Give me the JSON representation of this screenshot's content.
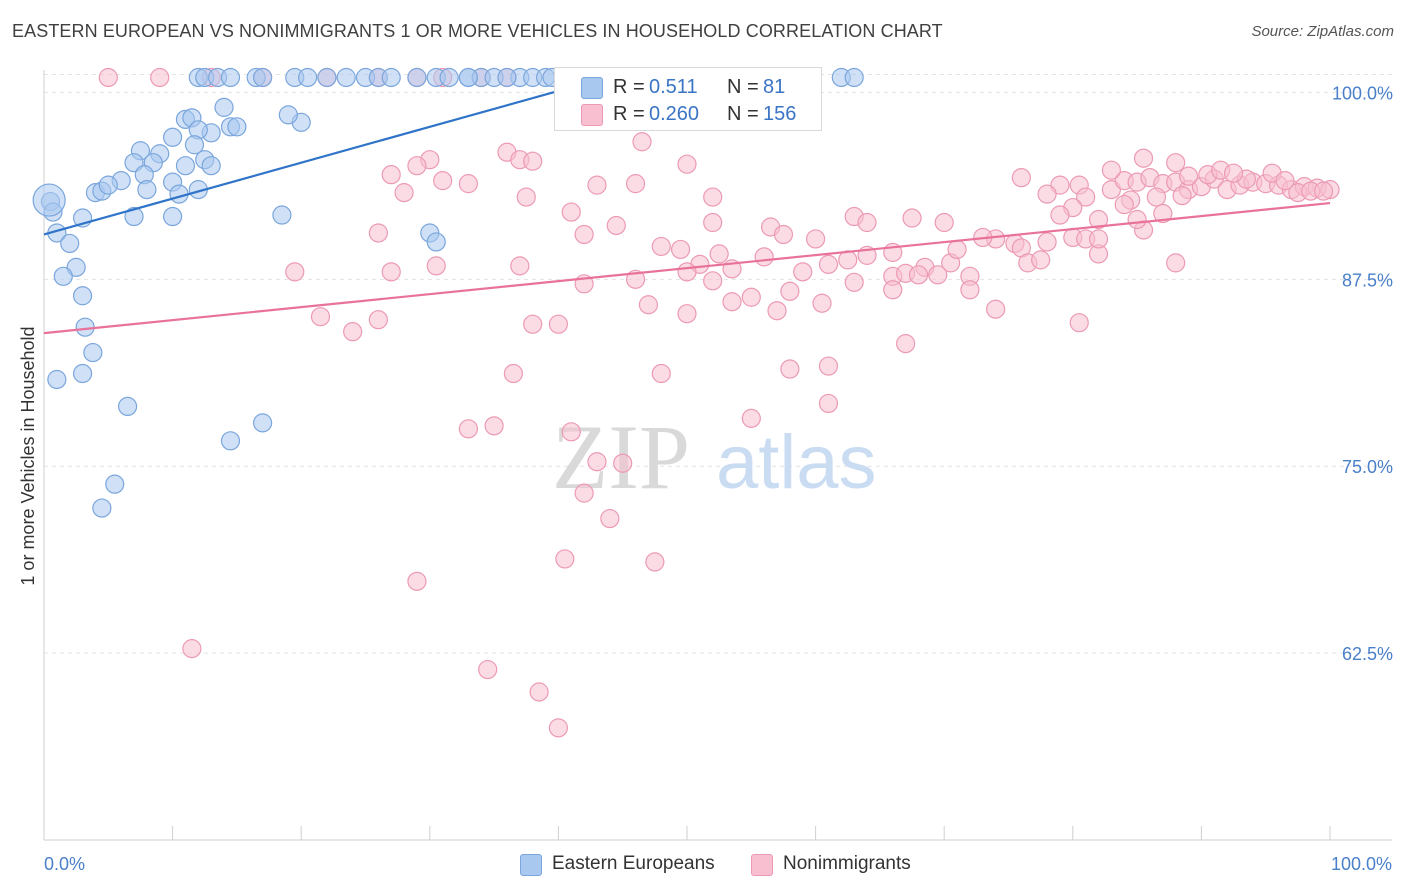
{
  "title": "EASTERN EUROPEAN VS NONIMMIGRANTS 1 OR MORE VEHICLES IN HOUSEHOLD CORRELATION CHART",
  "source": "Source: ZipAtlas.com",
  "watermark": {
    "zip": "ZIP",
    "atlas": "atlas"
  },
  "colors": {
    "blue_fill": "#a9c8f0",
    "blue_stroke": "#7aa6dc",
    "blue_line": "#2f74c8",
    "pink_fill": "#f7bfd0",
    "pink_stroke": "#ec9ab4",
    "pink_line": "#e8729a",
    "tick_label": "#4a7fc9",
    "grid": "#e3e3e3"
  },
  "legend": {
    "rows": [
      {
        "r_label": "R =",
        "r_value": "0.511",
        "n_label": "N =",
        "n_value": "81"
      },
      {
        "r_label": "R =",
        "r_value": "0.260",
        "n_label": "N =",
        "n_value": "156"
      }
    ]
  },
  "bottom_legend": [
    "Eastern Europeans",
    "Nonimmigrants"
  ],
  "chart_data": {
    "type": "scatter",
    "title": "EASTERN EUROPEAN VS NONIMMIGRANTS 1 OR MORE VEHICLES IN HOUSEHOLD CORRELATION CHART",
    "xlabel": "",
    "ylabel": "1 or more Vehicles in Household",
    "xlim": [
      0,
      100
    ],
    "ylim": [
      50,
      101.5
    ],
    "x_tick_labels": [
      {
        "value": 0,
        "label": "0.0%"
      },
      {
        "value": 100,
        "label": "100.0%"
      }
    ],
    "y_tick_labels": [
      {
        "value": 100,
        "label": "100.0%"
      },
      {
        "value": 87.5,
        "label": "87.5%"
      },
      {
        "value": 75,
        "label": "75.0%"
      },
      {
        "value": 62.5,
        "label": "62.5%"
      }
    ],
    "series": [
      {
        "name": "Eastern Europeans",
        "color": "#a9c8f0",
        "r": 0.511,
        "n": 81,
        "trend": {
          "x0": 0,
          "y0": 90.5,
          "x1": 40,
          "y1": 100.1
        },
        "points": [
          [
            12,
            101
          ],
          [
            12.5,
            101
          ],
          [
            13.5,
            101
          ],
          [
            14.5,
            101
          ],
          [
            16.5,
            101
          ],
          [
            17,
            101
          ],
          [
            19.5,
            101
          ],
          [
            20.5,
            101
          ],
          [
            22,
            101
          ],
          [
            23.5,
            101
          ],
          [
            25,
            101
          ],
          [
            26,
            101
          ],
          [
            27,
            101
          ],
          [
            29,
            101
          ],
          [
            30.5,
            101
          ],
          [
            31.5,
            101
          ],
          [
            33,
            101
          ],
          [
            34,
            101
          ],
          [
            37,
            101
          ],
          [
            38,
            101
          ],
          [
            39,
            101
          ],
          [
            39.5,
            101
          ],
          [
            40.5,
            101
          ],
          [
            42.5,
            101
          ],
          [
            44,
            101
          ],
          [
            47,
            101
          ],
          [
            62,
            101
          ],
          [
            63,
            101
          ],
          [
            11,
            98.2
          ],
          [
            11.5,
            98.3
          ],
          [
            14,
            99
          ],
          [
            14.5,
            97.7
          ],
          [
            15,
            97.7
          ],
          [
            20,
            98
          ],
          [
            19,
            98.5
          ],
          [
            13,
            97.3
          ],
          [
            12,
            97.5
          ],
          [
            11.7,
            96.5
          ],
          [
            10,
            97
          ],
          [
            7.5,
            96.1
          ],
          [
            9,
            95.9
          ],
          [
            7,
            95.3
          ],
          [
            8.5,
            95.3
          ],
          [
            11,
            95.1
          ],
          [
            12.5,
            95.5
          ],
          [
            6,
            94.1
          ],
          [
            7.8,
            94.5
          ],
          [
            10,
            94
          ],
          [
            12,
            93.5
          ],
          [
            10.5,
            93.2
          ],
          [
            8,
            93.5
          ],
          [
            4,
            93.3
          ],
          [
            4.5,
            93.4
          ],
          [
            5,
            93.8
          ],
          [
            0.5,
            92.7
          ],
          [
            0.7,
            92
          ],
          [
            3,
            91.6
          ],
          [
            7,
            91.7
          ],
          [
            10,
            91.7
          ],
          [
            18.5,
            91.8
          ],
          [
            30,
            90.6
          ],
          [
            30.5,
            90
          ],
          [
            1,
            90.6
          ],
          [
            2,
            89.9
          ],
          [
            2.5,
            88.3
          ],
          [
            1.5,
            87.7
          ],
          [
            3,
            86.4
          ],
          [
            3.2,
            84.3
          ],
          [
            3.8,
            82.6
          ],
          [
            3,
            81.2
          ],
          [
            1,
            80.8
          ],
          [
            6.5,
            79
          ],
          [
            17,
            77.9
          ],
          [
            14.5,
            76.7
          ],
          [
            5.5,
            73.8
          ],
          [
            4.5,
            72.2
          ],
          [
            13,
            95.1
          ],
          [
            33,
            101
          ],
          [
            35,
            101
          ],
          [
            36,
            101
          ]
        ]
      },
      {
        "name": "Nonimmigrants",
        "color": "#f7bfd0",
        "r": 0.26,
        "n": 156,
        "trend": {
          "x0": 0,
          "y0": 83.9,
          "x1": 100,
          "y1": 92.6
        },
        "points": [
          [
            5,
            101
          ],
          [
            9,
            101
          ],
          [
            13,
            101
          ],
          [
            17,
            101
          ],
          [
            22,
            101
          ],
          [
            26,
            101
          ],
          [
            29,
            101
          ],
          [
            31,
            101
          ],
          [
            34,
            101
          ],
          [
            36,
            101
          ],
          [
            30,
            95.5
          ],
          [
            29,
            95.1
          ],
          [
            36,
            96
          ],
          [
            37,
            95.5
          ],
          [
            38,
            95.4
          ],
          [
            46.5,
            96.7
          ],
          [
            50,
            95.2
          ],
          [
            27,
            94.5
          ],
          [
            28,
            93.3
          ],
          [
            31,
            94.1
          ],
          [
            33,
            93.9
          ],
          [
            37.5,
            93
          ],
          [
            43,
            93.8
          ],
          [
            46,
            93.9
          ],
          [
            52,
            93
          ],
          [
            41,
            92
          ],
          [
            44.5,
            91.1
          ],
          [
            52,
            91.3
          ],
          [
            56.5,
            91
          ],
          [
            63,
            91.7
          ],
          [
            64,
            91.3
          ],
          [
            67.5,
            91.6
          ],
          [
            70,
            91.3
          ],
          [
            26,
            90.6
          ],
          [
            42,
            90.5
          ],
          [
            48,
            89.7
          ],
          [
            49.5,
            89.5
          ],
          [
            51,
            88.5
          ],
          [
            52.5,
            89.2
          ],
          [
            56,
            89
          ],
          [
            57.5,
            90.5
          ],
          [
            60,
            90.2
          ],
          [
            62.5,
            88.8
          ],
          [
            64,
            89.1
          ],
          [
            66,
            89.3
          ],
          [
            68.5,
            88.3
          ],
          [
            70.5,
            88.6
          ],
          [
            71,
            89.5
          ],
          [
            74,
            90.2
          ],
          [
            75.5,
            89.9
          ],
          [
            76,
            89.6
          ],
          [
            73,
            90.3
          ],
          [
            76.5,
            88.6
          ],
          [
            77.5,
            88.8
          ],
          [
            78,
            90
          ],
          [
            80,
            90.3
          ],
          [
            81,
            90.2
          ],
          [
            82,
            89.2
          ],
          [
            19.5,
            88
          ],
          [
            27,
            88
          ],
          [
            30.5,
            88.4
          ],
          [
            37,
            88.4
          ],
          [
            42,
            87.2
          ],
          [
            46,
            87.5
          ],
          [
            50,
            88
          ],
          [
            52,
            87.4
          ],
          [
            53.5,
            88.2
          ],
          [
            55,
            86.3
          ],
          [
            58,
            86.7
          ],
          [
            59,
            88
          ],
          [
            61,
            88.5
          ],
          [
            63,
            87.3
          ],
          [
            66,
            87.7
          ],
          [
            67,
            87.9
          ],
          [
            68,
            87.8
          ],
          [
            69.5,
            87.8
          ],
          [
            72,
            87.7
          ],
          [
            74,
            85.5
          ],
          [
            21.5,
            85
          ],
          [
            24,
            84
          ],
          [
            26,
            84.8
          ],
          [
            38,
            84.5
          ],
          [
            40,
            84.5
          ],
          [
            47,
            85.8
          ],
          [
            50,
            85.2
          ],
          [
            53.5,
            86
          ],
          [
            57,
            85.4
          ],
          [
            60.5,
            85.9
          ],
          [
            66,
            86.8
          ],
          [
            72,
            86.8
          ],
          [
            67,
            83.2
          ],
          [
            80.5,
            84.6
          ],
          [
            82,
            90.2
          ],
          [
            88,
            88.6
          ],
          [
            36.5,
            81.2
          ],
          [
            48,
            81.2
          ],
          [
            58,
            81.5
          ],
          [
            61,
            81.7
          ],
          [
            61,
            79.2
          ],
          [
            33,
            77.5
          ],
          [
            35,
            77.7
          ],
          [
            41,
            77.3
          ],
          [
            55,
            78.2
          ],
          [
            43,
            75.3
          ],
          [
            45,
            75.2
          ],
          [
            42,
            73.2
          ],
          [
            44,
            71.5
          ],
          [
            40.5,
            68.8
          ],
          [
            47.5,
            68.6
          ],
          [
            29,
            67.3
          ],
          [
            11.5,
            62.8
          ],
          [
            34.5,
            61.4
          ],
          [
            38.5,
            59.9
          ],
          [
            40,
            57.5
          ],
          [
            76,
            94.3
          ],
          [
            79,
            93.8
          ],
          [
            80.5,
            93.8
          ],
          [
            83,
            93.5
          ],
          [
            84,
            94.1
          ],
          [
            85,
            94
          ],
          [
            86,
            94.3
          ],
          [
            87,
            93.9
          ],
          [
            88,
            94
          ],
          [
            89,
            93.5
          ],
          [
            90,
            93.7
          ],
          [
            91,
            94.2
          ],
          [
            92,
            93.5
          ],
          [
            93,
            93.8
          ],
          [
            94,
            94
          ],
          [
            95,
            93.9
          ],
          [
            96,
            93.8
          ],
          [
            97,
            93.5
          ],
          [
            98,
            93.7
          ],
          [
            99,
            93.6
          ],
          [
            100,
            93.5
          ],
          [
            78,
            93.2
          ],
          [
            81,
            93
          ],
          [
            84.5,
            92.8
          ],
          [
            86.5,
            93
          ],
          [
            88.5,
            93.1
          ],
          [
            90.5,
            94.5
          ],
          [
            93.5,
            94.2
          ],
          [
            95.5,
            94.6
          ],
          [
            97.5,
            93.3
          ],
          [
            98.5,
            93.4
          ],
          [
            99.5,
            93.4
          ],
          [
            85.5,
            95.6
          ],
          [
            88,
            95.3
          ],
          [
            91.5,
            94.8
          ],
          [
            83,
            94.8
          ],
          [
            89,
            94.4
          ],
          [
            92.5,
            94.6
          ],
          [
            96.5,
            94.1
          ],
          [
            84,
            92.5
          ],
          [
            80,
            92.3
          ],
          [
            87,
            91.9
          ],
          [
            85.5,
            90.8
          ],
          [
            85,
            91.5
          ],
          [
            79,
            91.8
          ],
          [
            82,
            91.5
          ]
        ]
      }
    ]
  }
}
